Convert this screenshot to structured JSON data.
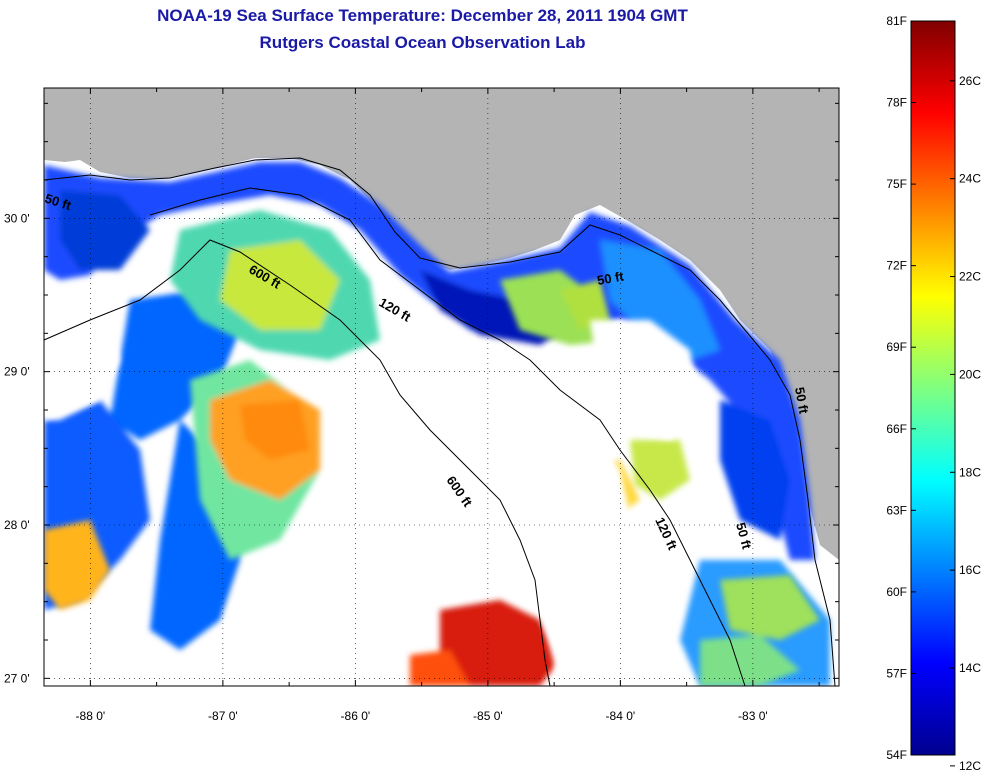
{
  "title": "NOAA-19 Sea Surface Temperature:  December 28, 2011 1904 GMT",
  "subtitle": "Rutgers Coastal Ocean Observation Lab",
  "map": {
    "lon_ticks": [
      {
        "value": -88,
        "label": "-88 0'"
      },
      {
        "value": -87,
        "label": "-87 0'"
      },
      {
        "value": -86,
        "label": "-86 0'"
      },
      {
        "value": -85,
        "label": "-85 0'"
      },
      {
        "value": -84,
        "label": "-84 0'"
      },
      {
        "value": -83,
        "label": "-83 0'"
      }
    ],
    "lat_ticks": [
      {
        "value": 30,
        "label": "30 0'"
      },
      {
        "value": 29,
        "label": "29 0'"
      },
      {
        "value": 28,
        "label": "28 0'"
      },
      {
        "value": 27,
        "label": "27 0'"
      }
    ],
    "lon_range": [
      -88.35,
      -82.35
    ],
    "lat_range": [
      26.95,
      30.85
    ],
    "contour_labels": [
      "50 ft",
      "600 ft",
      "120 ft",
      "50 ft",
      "600 ft",
      "120 ft",
      "50 ft",
      "50 ft"
    ],
    "land_color": "#b4b4b4",
    "cloud_color": "#ffffff"
  },
  "colorbar": {
    "fahrenheit_labels": [
      "81F",
      "78F",
      "75F",
      "72F",
      "69F",
      "66F",
      "63F",
      "60F",
      "57F",
      "54F"
    ],
    "celsius_labels": [
      "26C",
      "24C",
      "22C",
      "20C",
      "18C",
      "16C",
      "14C",
      "12C"
    ],
    "range_f": [
      54,
      81
    ],
    "colormap": "jet"
  }
}
